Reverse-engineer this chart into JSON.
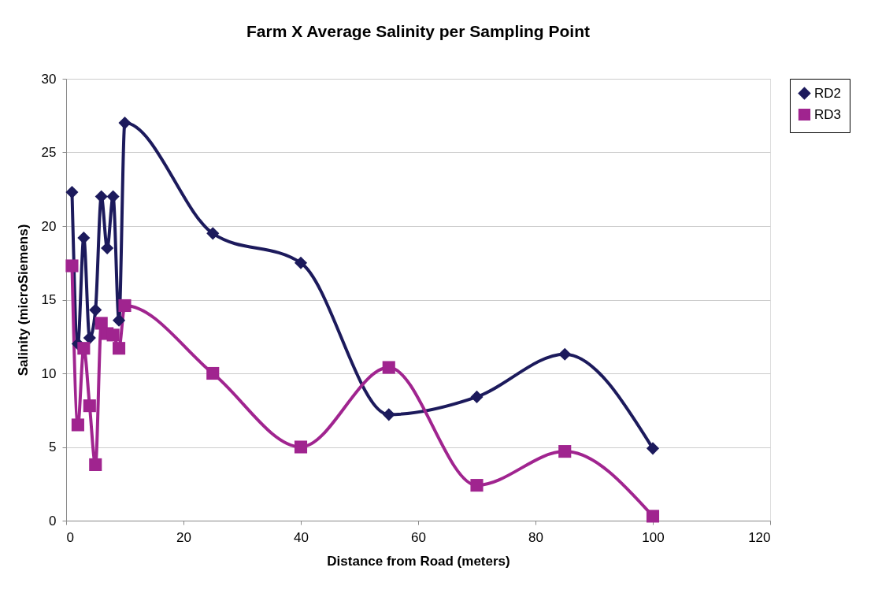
{
  "chart_data": {
    "type": "line",
    "title": "Farm X  Average Salinity per Sampling Point",
    "xlabel": "Distance from Road (meters)",
    "ylabel": "Salinity (microSiemens)",
    "x": [
      1,
      2,
      3,
      4,
      5,
      6,
      7,
      8,
      9,
      10,
      25,
      40,
      55,
      70,
      85,
      100
    ],
    "series": [
      {
        "name": "RD2",
        "color": "#1c1a5c",
        "marker": "diamond",
        "values": [
          22.3,
          12,
          19.2,
          12.4,
          14.3,
          22,
          18.5,
          22,
          13.6,
          27,
          19.5,
          17.5,
          7.2,
          8.4,
          11.3,
          4.9
        ]
      },
      {
        "name": "RD3",
        "color": "#a0248f",
        "marker": "square",
        "values": [
          17.3,
          6.5,
          11.7,
          7.8,
          3.8,
          13.4,
          12.7,
          12.6,
          11.7,
          14.6,
          10,
          5,
          10.4,
          2.4,
          4.7,
          0.3
        ]
      }
    ],
    "xlim": [
      0,
      120
    ],
    "xticks": [
      0,
      20,
      40,
      60,
      80,
      100,
      120
    ],
    "ylim": [
      0,
      30
    ],
    "yticks": [
      0,
      5,
      10,
      15,
      20,
      25,
      30
    ],
    "grid": "y",
    "legend": "right",
    "line_style": "solid"
  }
}
